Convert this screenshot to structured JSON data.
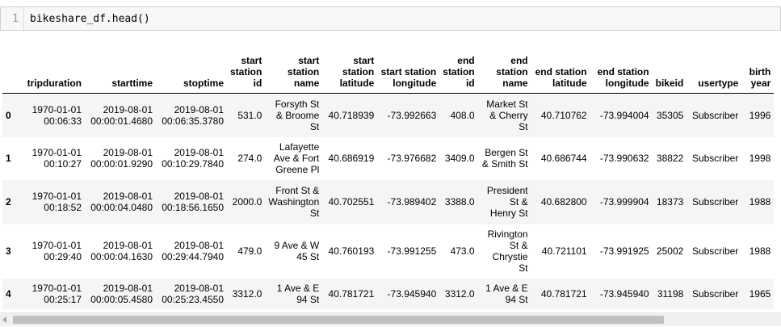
{
  "code_cell": {
    "line_number": "1",
    "code": "bikeshare_df.head()"
  },
  "table": {
    "columns": [
      "tripduration",
      "starttime",
      "stoptime",
      "start station id",
      "start station name",
      "start station latitude",
      "start station longitude",
      "end station id",
      "end station name",
      "end station latitude",
      "end station longitude",
      "bikeid",
      "usertype",
      "birth year"
    ],
    "rows": [
      {
        "index": "0",
        "cells": [
          "1970-01-01 00:06:33",
          "2019-08-01 00:00:01.4680",
          "2019-08-01 00:06:35.3780",
          "531.0",
          "Forsyth St & Broome St",
          "40.718939",
          "-73.992663",
          "408.0",
          "Market St & Cherry St",
          "40.710762",
          "-73.994004",
          "35305",
          "Subscriber",
          "1996"
        ]
      },
      {
        "index": "1",
        "cells": [
          "1970-01-01 00:10:27",
          "2019-08-01 00:00:01.9290",
          "2019-08-01 00:10:29.7840",
          "274.0",
          "Lafayette Ave & Fort Greene Pl",
          "40.686919",
          "-73.976682",
          "3409.0",
          "Bergen St & Smith St",
          "40.686744",
          "-73.990632",
          "38822",
          "Subscriber",
          "1998"
        ]
      },
      {
        "index": "2",
        "cells": [
          "1970-01-01 00:18:52",
          "2019-08-01 00:00:04.0480",
          "2019-08-01 00:18:56.1650",
          "2000.0",
          "Front St & Washington St",
          "40.702551",
          "-73.989402",
          "3388.0",
          "President St & Henry St",
          "40.682800",
          "-73.999904",
          "18373",
          "Subscriber",
          "1988"
        ]
      },
      {
        "index": "3",
        "cells": [
          "1970-01-01 00:29:40",
          "2019-08-01 00:00:04.1630",
          "2019-08-01 00:29:44.7940",
          "479.0",
          "9 Ave & W 45 St",
          "40.760193",
          "-73.991255",
          "473.0",
          "Rivington St & Chrystie St",
          "40.721101",
          "-73.991925",
          "25002",
          "Subscriber",
          "1988"
        ]
      },
      {
        "index": "4",
        "cells": [
          "1970-01-01 00:25:17",
          "2019-08-01 00:00:05.4580",
          "2019-08-01 00:25:23.4550",
          "3312.0",
          "1 Ave & E 94 St",
          "40.781721",
          "-73.945940",
          "3312.0",
          "1 Ave & E 94 St",
          "40.781721",
          "-73.945940",
          "31198",
          "Subscriber",
          "1965"
        ]
      }
    ]
  },
  "scrollbar": {
    "left_arrow_icon": "triangle-left-icon"
  }
}
